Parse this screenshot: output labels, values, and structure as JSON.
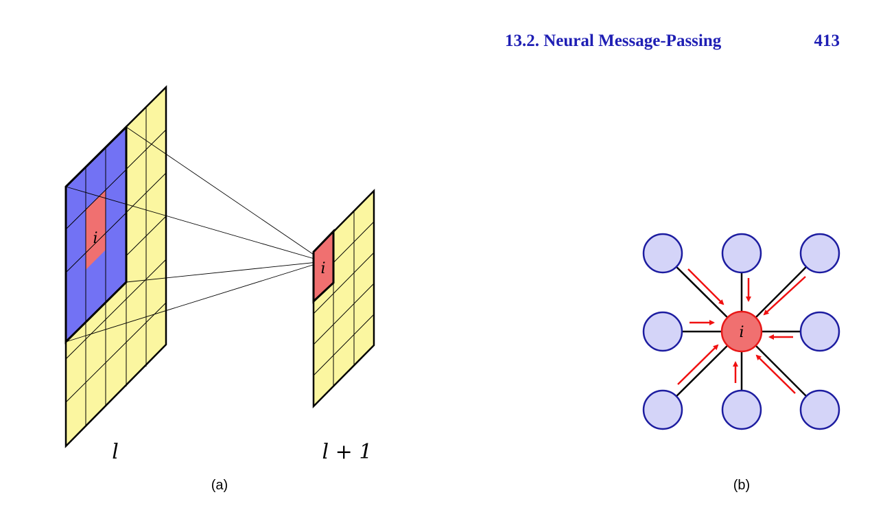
{
  "header": {
    "section_title": "13.2. Neural Message-Passing",
    "page_number": "413"
  },
  "figure_a": {
    "layer_l_label": "l",
    "layer_l1_label": "l + 1",
    "node_label_input": "i",
    "node_label_output": "i",
    "caption": "(a)"
  },
  "figure_b": {
    "center_label": "i",
    "caption": "(b)"
  },
  "colors": {
    "header_blue": "#1f1fb4",
    "grid_yellow": "#fbf6a0",
    "receptive_blue": "#7272f4",
    "node_red": "#f07070",
    "neighbor_fill": "#d4d4f8",
    "neighbor_stroke": "#1c1ca0",
    "arrow_red": "#f01010"
  }
}
